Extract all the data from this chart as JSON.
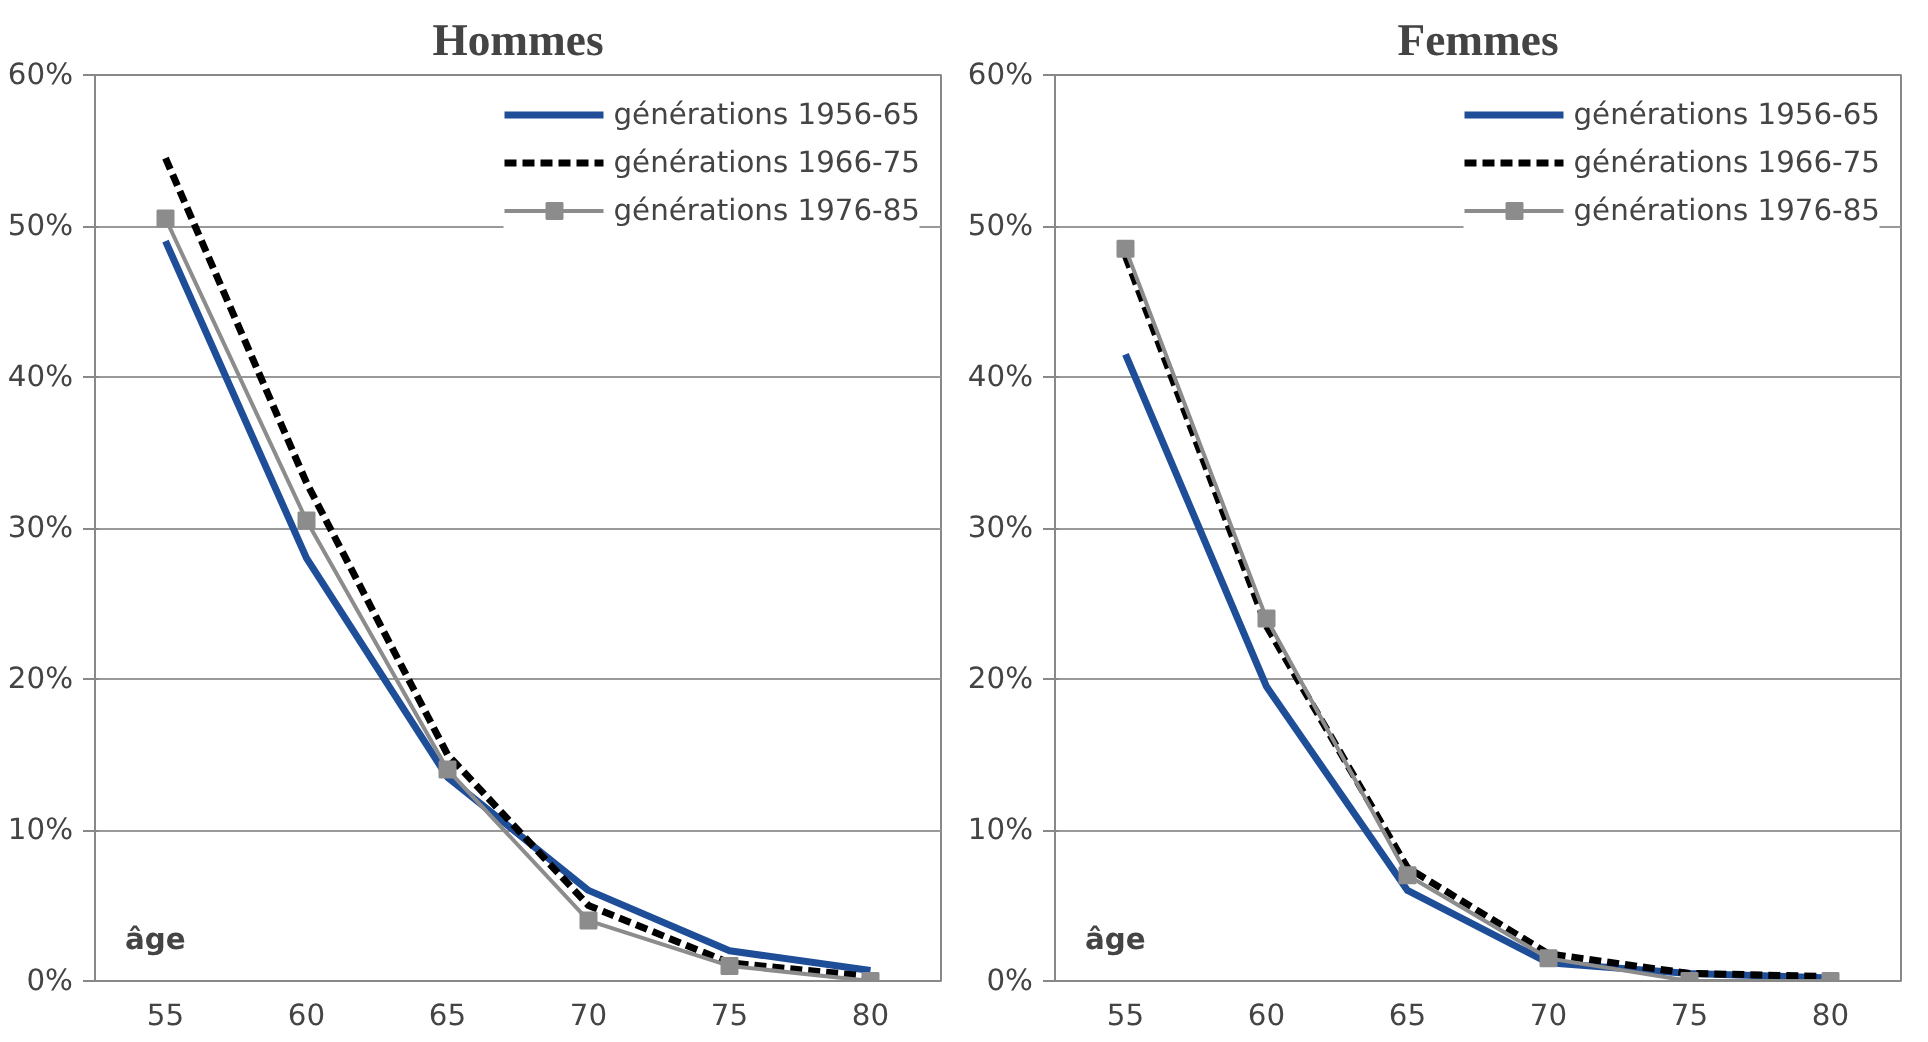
{
  "chart_data": [
    {
      "type": "line",
      "title": "Hommes",
      "categories": [
        "55",
        "60",
        "65",
        "70",
        "75",
        "80"
      ],
      "ylim": [
        0,
        60
      ],
      "yticks": [
        {
          "value": 0,
          "label": "0%"
        },
        {
          "value": 10,
          "label": "10%"
        },
        {
          "value": 20,
          "label": "20%"
        },
        {
          "value": 30,
          "label": "30%"
        },
        {
          "value": 40,
          "label": "40%"
        },
        {
          "value": 50,
          "label": "50%"
        },
        {
          "value": 60,
          "label": "60%"
        }
      ],
      "grid": "y",
      "legend": "top right",
      "annotations": [
        "âge"
      ],
      "series": [
        {
          "name": "générations 1956-65",
          "color": "#1f4e99",
          "line_style": "solid",
          "marker": "none",
          "values": [
            49,
            28,
            13.5,
            6,
            2,
            0.7
          ]
        },
        {
          "name": "générations 1966-75",
          "color": "#000000",
          "line_style": "dashed",
          "marker": "none",
          "values": [
            54.5,
            33,
            15,
            5,
            1.2,
            0.3
          ]
        },
        {
          "name": "générations 1976-85",
          "color": "#8c8c8c",
          "line_style": "solid",
          "marker": "square",
          "values": [
            50.5,
            30.5,
            14,
            4,
            1,
            0
          ]
        }
      ]
    },
    {
      "type": "line",
      "title": "Femmes",
      "categories": [
        "55",
        "60",
        "65",
        "70",
        "75",
        "80"
      ],
      "ylim": [
        0,
        60
      ],
      "yticks": [
        {
          "value": 0,
          "label": "0%"
        },
        {
          "value": 10,
          "label": "10%"
        },
        {
          "value": 20,
          "label": "20%"
        },
        {
          "value": 30,
          "label": "30%"
        },
        {
          "value": 40,
          "label": "40%"
        },
        {
          "value": 50,
          "label": "50%"
        },
        {
          "value": 60,
          "label": "60%"
        }
      ],
      "grid": "y",
      "legend": "top right",
      "annotations": [
        "âge"
      ],
      "series": [
        {
          "name": "générations 1956-65",
          "color": "#1f4e99",
          "line_style": "solid",
          "marker": "none",
          "values": [
            41.5,
            19.5,
            6,
            1.2,
            0.5,
            0.2
          ]
        },
        {
          "name": "générations 1966-75",
          "color": "#000000",
          "line_style": "dashed",
          "marker": "none",
          "values": [
            48,
            23.5,
            7.5,
            1.8,
            0.5,
            0.3
          ]
        },
        {
          "name": "générations 1976-85",
          "color": "#8c8c8c",
          "line_style": "solid",
          "marker": "square",
          "values": [
            48.5,
            24,
            7,
            1.5,
            0,
            0
          ]
        }
      ]
    }
  ]
}
